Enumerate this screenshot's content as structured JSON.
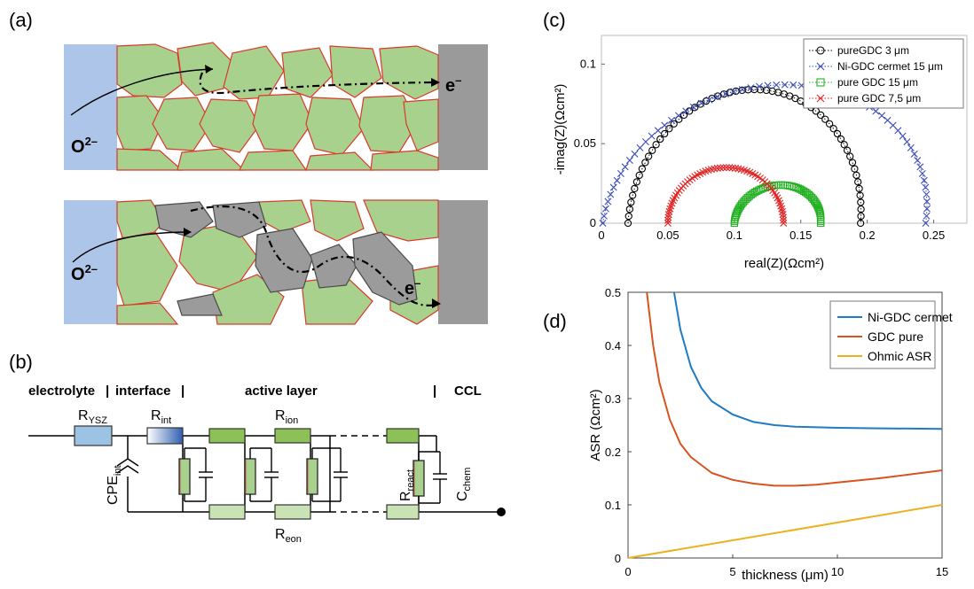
{
  "panels": {
    "a": "(a)",
    "b": "(b)",
    "c": "(c)",
    "d": "(d)"
  },
  "panel_a": {
    "oxide_ion": "O",
    "oxide_charge": "2–",
    "electron": "e",
    "electron_charge": "–",
    "colors": {
      "electrolyte": "#adc5e8",
      "gdc_grain": "#a8d18e",
      "grain_outline": "#d93a2b",
      "ni_grain": "#9b9b9b",
      "collector": "#9a9a9a"
    }
  },
  "panel_b": {
    "header_electrolyte": "electrolyte",
    "header_sep1": "|",
    "header_interface": "interface",
    "header_sep2": "|",
    "header_active": "active layer",
    "header_sep3": "|",
    "header_ccl": "CCL",
    "r_ysz": "R",
    "r_ysz_sub": "YSZ",
    "r_int": "R",
    "r_int_sub": "int",
    "r_ion": "R",
    "r_ion_sub": "ion",
    "r_eon": "R",
    "r_eon_sub": "eon",
    "cpe": "CPE",
    "cpe_sub": "int",
    "r_react": "R",
    "r_react_sub": "react",
    "c_chem": "C",
    "c_chem_sub": "chem"
  },
  "chart_data": [
    {
      "type": "scatter",
      "panel": "c",
      "xlabel": "real(Z)(Ωcm²)",
      "ylabel": "-imag(Z)(Ωcm²)",
      "xlim": [
        0,
        0.275
      ],
      "ylim": [
        0,
        0.118
      ],
      "xticks": [
        "0",
        "0.05",
        "0.1",
        "0.15",
        "0.2",
        "0.25"
      ],
      "yticks": [
        "0",
        "0.05",
        "0.1"
      ],
      "legend_position": "top-right",
      "series": [
        {
          "name": "pureGDC 3 μm",
          "marker": "circle",
          "color": "#000000",
          "r_start": 0.02,
          "r_end": 0.195,
          "peak": 0.084,
          "peak_at": 0.115
        },
        {
          "name": "Ni-GDC cermet 15 μm",
          "marker": "x",
          "color": "#3c4eb8",
          "r_start": 0.001,
          "r_end": 0.244,
          "peak": 0.087,
          "peak_at": 0.138
        },
        {
          "name": "pure GDC 15 μm",
          "marker": "square",
          "color": "#22b022",
          "r_start": 0.1,
          "r_end": 0.165,
          "peak": 0.024,
          "peak_at": 0.135
        },
        {
          "name": "pure GDC 7,5 μm",
          "marker": "x",
          "color": "#e02424",
          "r_start": 0.05,
          "r_end": 0.137,
          "peak": 0.035,
          "peak_at": 0.094
        }
      ]
    },
    {
      "type": "line",
      "panel": "d",
      "xlabel": "thickness (μm)",
      "ylabel": "ASR (Ωcm²)",
      "xlim": [
        0,
        15
      ],
      "ylim": [
        0,
        0.5
      ],
      "xticks": [
        "0",
        "5",
        "10",
        "15"
      ],
      "yticks": [
        "0",
        "0.1",
        "0.2",
        "0.3",
        "0.4",
        "0.5"
      ],
      "legend_position": "top-right",
      "series": [
        {
          "name": "Ni-GDC cermet",
          "color": "#1f7bc4",
          "x": [
            2.2,
            2.5,
            3,
            3.5,
            4,
            5,
            6,
            7,
            8,
            10,
            12,
            15
          ],
          "y": [
            0.5,
            0.43,
            0.36,
            0.32,
            0.295,
            0.27,
            0.256,
            0.25,
            0.247,
            0.245,
            0.244,
            0.243
          ]
        },
        {
          "name": "GDC pure",
          "color": "#d9531e",
          "x": [
            0.9,
            1.2,
            1.5,
            2,
            2.5,
            3,
            4,
            5,
            6,
            7,
            8,
            9,
            10,
            12,
            15
          ],
          "y": [
            0.5,
            0.4,
            0.33,
            0.26,
            0.215,
            0.19,
            0.16,
            0.147,
            0.14,
            0.136,
            0.136,
            0.138,
            0.142,
            0.15,
            0.165
          ]
        },
        {
          "name": "Ohmic ASR",
          "color": "#ebb120",
          "x": [
            0,
            15
          ],
          "y": [
            0,
            0.1
          ]
        }
      ]
    }
  ]
}
